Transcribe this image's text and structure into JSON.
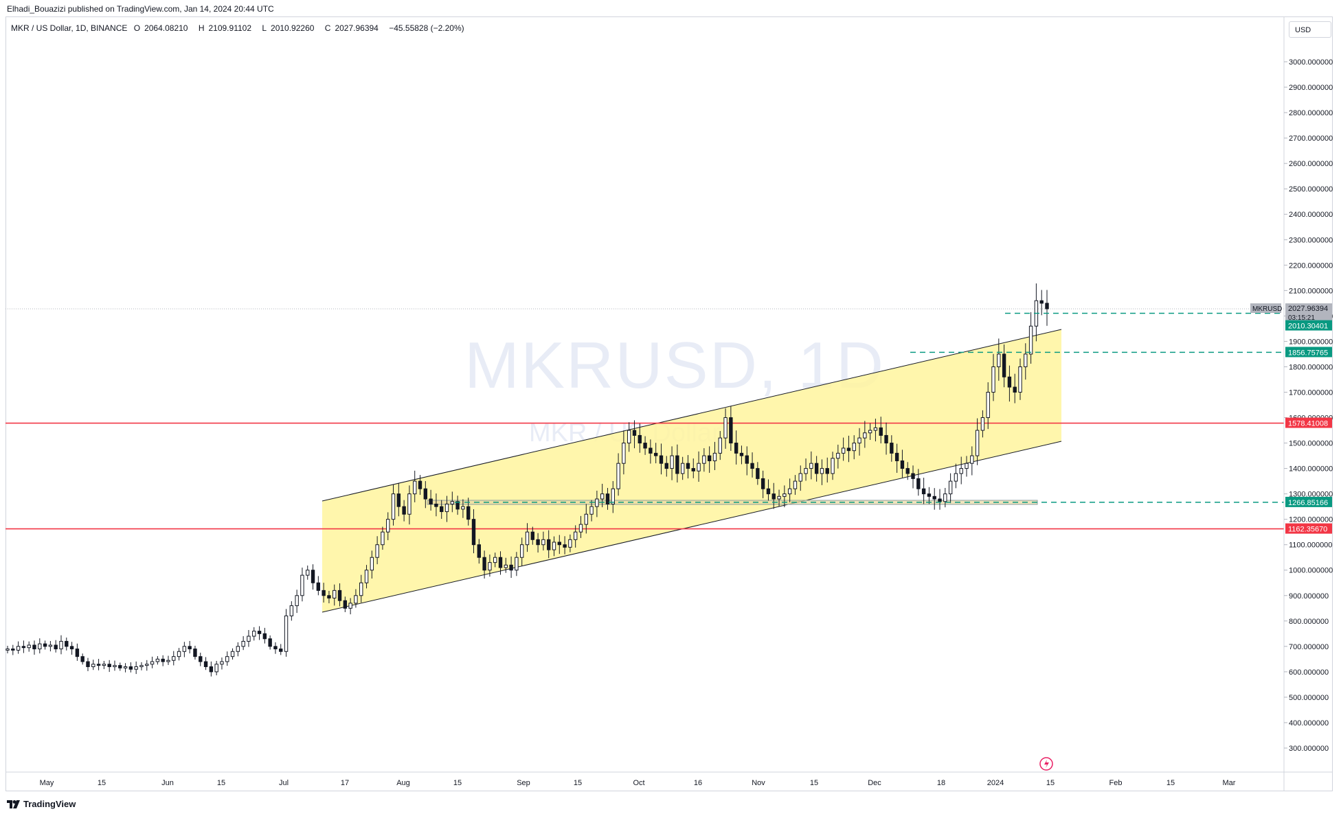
{
  "header": {
    "published": "Elhadi_Bouazizi published on TradingView.com, Jan 14, 2024 20:44 UTC"
  },
  "legend": {
    "symbol": "MKR / US Dollar, 1D, BINANCE",
    "open_label": "O",
    "open": "2064.08210",
    "high_label": "H",
    "high": "2109.91102",
    "low_label": "L",
    "low": "2010.92260",
    "close_label": "C",
    "close": "2027.96394",
    "change": "−45.55828 (−2.20%)"
  },
  "watermark": {
    "main": "MKRUSD, 1D",
    "sub": "MKR / US Dollar"
  },
  "price_axis": {
    "unit": "USD"
  },
  "footer": {
    "brand": "TradingView"
  },
  "colors": {
    "up": "#131722",
    "down": "#131722",
    "channel_fill": "#fff59d",
    "red_line": "#f23645",
    "green_label": "#089981",
    "dash": "#089981"
  },
  "chart_data": {
    "type": "candlestick",
    "symbol": "MKRUSD",
    "timeframe": "1D",
    "ylim": [
      200,
      3100
    ],
    "y_ticks": [
      "300.000000",
      "400.000000",
      "500.000000",
      "600.000000",
      "700.000000",
      "800.000000",
      "900.000000",
      "1000.000000",
      "1100.000000",
      "1200.000000",
      "1300.000000",
      "1400.000000",
      "1500.000000",
      "1600.000000",
      "1700.000000",
      "1800.000000",
      "1900.000000",
      "2000.000000",
      "2100.000000",
      "2200.000000",
      "2300.000000",
      "2400.000000",
      "2500.000000",
      "2600.000000",
      "2700.000000",
      "2800.000000",
      "2900.000000",
      "3000.000000"
    ],
    "x_ticks": [
      "May",
      "15",
      "Jun",
      "15",
      "Jul",
      "17",
      "Aug",
      "15",
      "Sep",
      "15",
      "Oct",
      "16",
      "Nov",
      "15",
      "Dec",
      "18",
      "2024",
      "15",
      "Feb",
      "15",
      "Mar"
    ],
    "price_labels": [
      {
        "name": "MKRUSD",
        "value": "2027.96394",
        "countdown": "03:15:21",
        "kind": "last"
      },
      {
        "value": "2010.30401",
        "kind": "green"
      },
      {
        "value": "1856.75765",
        "kind": "green"
      },
      {
        "value": "1578.41008",
        "kind": "red"
      },
      {
        "value": "1266.85166",
        "kind": "green"
      },
      {
        "value": "1162.35670",
        "kind": "red"
      }
    ],
    "horizontal_lines": [
      1578.41008,
      1162.3567
    ],
    "dashed_levels": [
      2010.30401,
      1856.75765,
      1266.85166
    ],
    "channel": {
      "upper": [
        [
          "2023-07-10",
          1280
        ],
        [
          "2024-01-17",
          1945
        ]
      ],
      "lower": [
        [
          "2023-07-10",
          840
        ],
        [
          "2024-01-17",
          1510
        ]
      ]
    },
    "zone": [
      1255,
      1275
    ],
    "closes": [
      690,
      685,
      700,
      695,
      705,
      690,
      710,
      700,
      705,
      690,
      720,
      700,
      690,
      660,
      640,
      620,
      630,
      625,
      630,
      620,
      625,
      615,
      620,
      610,
      620,
      625,
      630,
      640,
      650,
      640,
      645,
      660,
      680,
      700,
      690,
      660,
      640,
      620,
      600,
      630,
      640,
      660,
      680,
      700,
      720,
      740,
      760,
      750,
      730,
      700,
      690,
      680,
      820,
      860,
      900,
      980,
      1000,
      950,
      920,
      900,
      890,
      920,
      880,
      850,
      870,
      900,
      950,
      1000,
      1050,
      1100,
      1150,
      1200,
      1300,
      1250,
      1220,
      1300,
      1350,
      1320,
      1280,
      1260,
      1250,
      1230,
      1260,
      1270,
      1240,
      1250,
      1200,
      1100,
      1050,
      1000,
      1030,
      1050,
      1010,
      1020,
      1000,
      1050,
      1100,
      1150,
      1120,
      1100,
      1120,
      1080,
      1110,
      1100,
      1090,
      1120,
      1150,
      1180,
      1220,
      1250,
      1280,
      1300,
      1260,
      1320,
      1420,
      1500,
      1550,
      1530,
      1500,
      1480,
      1460,
      1450,
      1420,
      1400,
      1450,
      1380,
      1420,
      1400,
      1390,
      1420,
      1450,
      1430,
      1460,
      1520,
      1600,
      1500,
      1460,
      1450,
      1420,
      1400,
      1360,
      1320,
      1300,
      1280,
      1290,
      1300,
      1320,
      1350,
      1380,
      1400,
      1420,
      1380,
      1400,
      1380,
      1440,
      1460,
      1480,
      1470,
      1500,
      1520,
      1540,
      1550,
      1560,
      1530,
      1500,
      1460,
      1430,
      1400,
      1380,
      1360,
      1320,
      1300,
      1290,
      1280,
      1270,
      1300,
      1350,
      1380,
      1400,
      1420,
      1450,
      1550,
      1600,
      1700,
      1800,
      1850,
      1760,
      1720,
      1700,
      1800,
      1850,
      1960,
      2060,
      2050,
      2028
    ]
  }
}
